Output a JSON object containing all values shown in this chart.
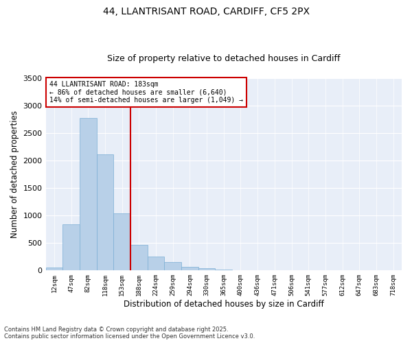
{
  "title1": "44, LLANTRISANT ROAD, CARDIFF, CF5 2PX",
  "title2": "Size of property relative to detached houses in Cardiff",
  "xlabel": "Distribution of detached houses by size in Cardiff",
  "ylabel": "Number of detached properties",
  "categories": [
    "12sqm",
    "47sqm",
    "82sqm",
    "118sqm",
    "153sqm",
    "188sqm",
    "224sqm",
    "259sqm",
    "294sqm",
    "330sqm",
    "365sqm",
    "400sqm",
    "436sqm",
    "471sqm",
    "506sqm",
    "541sqm",
    "577sqm",
    "612sqm",
    "647sqm",
    "683sqm",
    "718sqm"
  ],
  "values": [
    55,
    840,
    2780,
    2110,
    1040,
    460,
    250,
    155,
    65,
    40,
    15,
    5,
    0,
    0,
    0,
    0,
    0,
    0,
    0,
    0,
    0
  ],
  "bar_color": "#b8d0e8",
  "bar_edge_color": "#7aaed4",
  "annotation_text": "44 LLANTRISANT ROAD: 183sqm\n← 86% of detached houses are smaller (6,640)\n14% of semi-detached houses are larger (1,049) →",
  "vline_x": 4.5,
  "vline_color": "#cc0000",
  "annotation_box_color": "#cc0000",
  "ylim": [
    0,
    3500
  ],
  "yticks": [
    0,
    500,
    1000,
    1500,
    2000,
    2500,
    3000,
    3500
  ],
  "footer1": "Contains HM Land Registry data © Crown copyright and database right 2025.",
  "footer2": "Contains public sector information licensed under the Open Government Licence v3.0.",
  "bg_color": "#e8eef8",
  "title_fontsize": 10,
  "subtitle_fontsize": 9
}
